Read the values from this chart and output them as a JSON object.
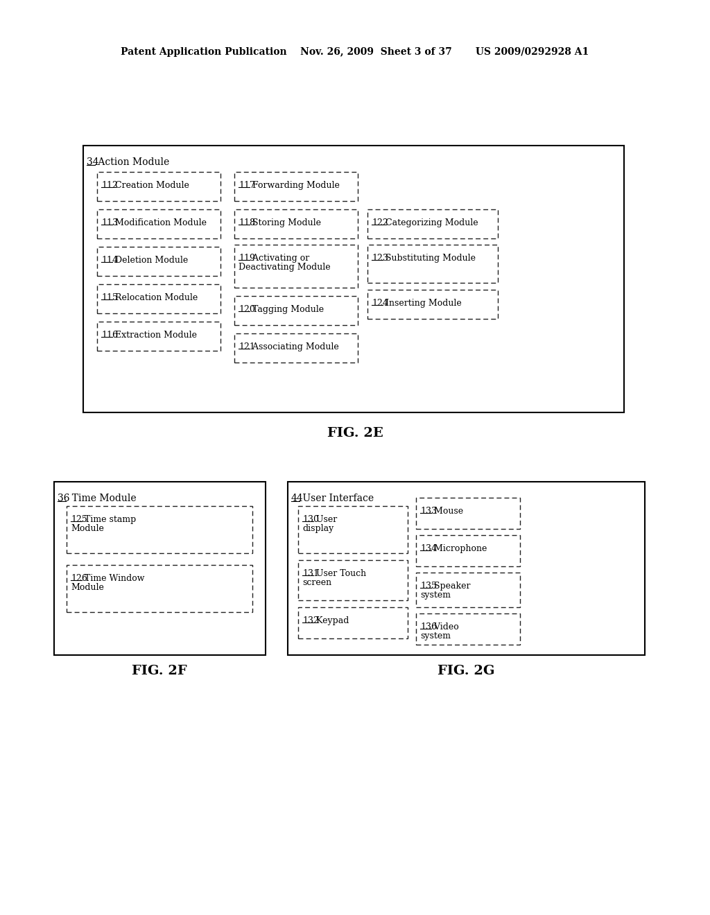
{
  "header": "Patent Application Publication    Nov. 26, 2009  Sheet 3 of 37       US 2009/0292928 A1",
  "fig2e_label": "FIG. 2E",
  "fig2f_label": "FIG. 2F",
  "fig2g_label": "FIG. 2G",
  "e_outer": [
    120,
    210,
    780,
    385
  ],
  "e_outer_label": "34 Action Module",
  "e_col1": [
    [
      140,
      248,
      178,
      42,
      "112 Creation Module"
    ],
    [
      140,
      302,
      178,
      42,
      "113 Modification Module"
    ],
    [
      140,
      356,
      178,
      42,
      "114 Deletion Module"
    ],
    [
      140,
      410,
      178,
      42,
      "115 Relocation Module"
    ],
    [
      140,
      464,
      178,
      42,
      "116 Extraction Module"
    ]
  ],
  "e_col2": [
    [
      338,
      248,
      178,
      42,
      "117 Forwarding Module"
    ],
    [
      338,
      302,
      178,
      42,
      "118 Storing Module"
    ],
    [
      338,
      353,
      178,
      62,
      "119 Activating or\nDeactivating Module"
    ],
    [
      338,
      427,
      178,
      42,
      "120 Tagging Module"
    ],
    [
      338,
      481,
      178,
      42,
      "121 Associating Module"
    ]
  ],
  "e_col3": [
    [
      530,
      302,
      188,
      42,
      "122 Categorizing Module"
    ],
    [
      530,
      353,
      188,
      55,
      "123 Substituting Module"
    ],
    [
      530,
      418,
      188,
      42,
      "124 Inserting Module"
    ]
  ],
  "f_outer": [
    78,
    695,
    305,
    250
  ],
  "f_outer_label": "36  Time Module",
  "f_boxes": [
    [
      96,
      730,
      268,
      68,
      "125 Time stamp\nModule"
    ],
    [
      96,
      815,
      268,
      68,
      "126 Time Window\nModule"
    ]
  ],
  "g_outer": [
    415,
    695,
    515,
    250
  ],
  "g_outer_label": "44 User Interface",
  "g_col1": [
    [
      430,
      730,
      158,
      68,
      "130 User\ndisplay"
    ],
    [
      430,
      808,
      158,
      58,
      "131 User Touch\nscreen"
    ],
    [
      430,
      876,
      158,
      45,
      "132 Keypad"
    ]
  ],
  "g_col2": [
    [
      600,
      718,
      150,
      45,
      "133 Mouse"
    ],
    [
      600,
      772,
      150,
      45,
      "134 Microphone"
    ],
    [
      600,
      826,
      150,
      50,
      "135 Speaker\nsystem"
    ],
    [
      600,
      885,
      150,
      45,
      "136 Video\nsystem"
    ]
  ]
}
